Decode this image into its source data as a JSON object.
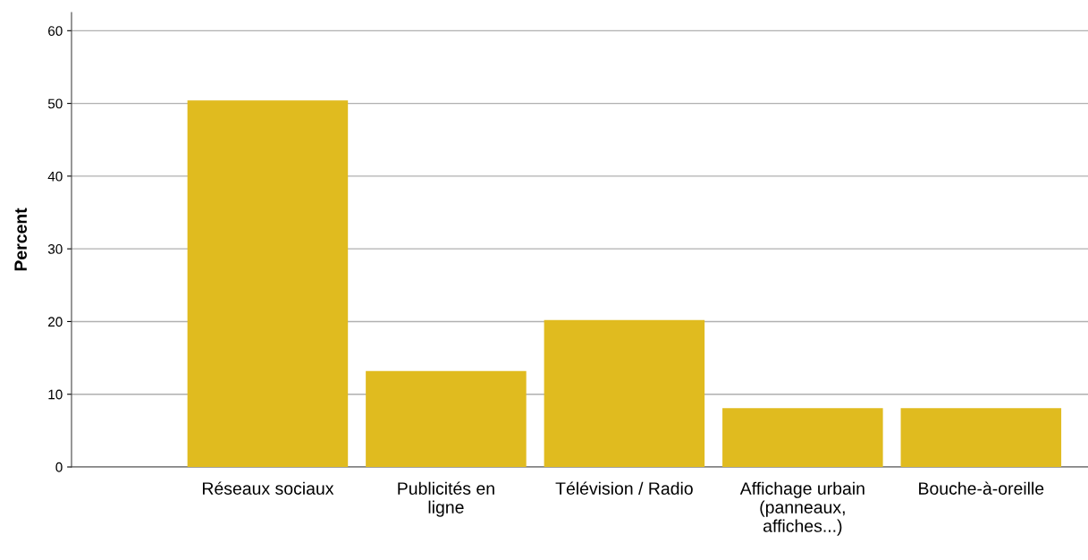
{
  "chart_data": {
    "type": "bar",
    "ylabel": "Percent",
    "categories": [
      "Réseaux sociaux",
      "Publicités en ligne",
      "Télévision / Radio",
      "Affichage urbain (panneaux, affiches...)",
      "Bouche-à-oreille"
    ],
    "values": [
      50.4,
      13.2,
      20.2,
      8.1,
      8.1
    ],
    "color": "#e0bb1f",
    "ylim": [
      0,
      62.5
    ],
    "yticks": [
      0,
      10,
      20,
      30,
      40,
      50,
      60
    ],
    "grid": "y"
  }
}
